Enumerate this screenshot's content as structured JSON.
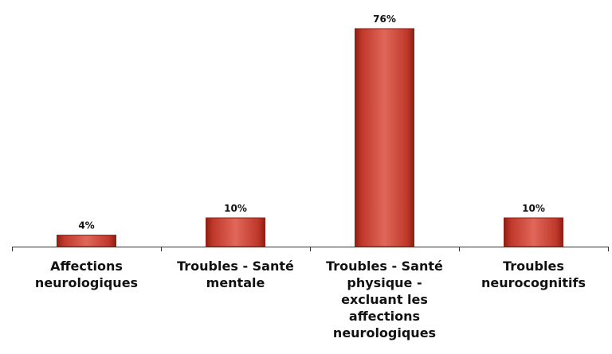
{
  "chart_data": {
    "type": "bar",
    "categories": [
      "Affections\nneurologiques",
      "Troubles - Santé\nmentale",
      "Troubles - Santé\nphysique -\nexcluant les\naffections\nneurologiques",
      "Troubles\nneurocognitifs"
    ],
    "values": [
      4,
      10,
      76,
      10
    ],
    "data_labels": [
      "4%",
      "10%",
      "76%",
      "10%"
    ],
    "title": "",
    "xlabel": "",
    "ylabel": "",
    "ylim": [
      0,
      76
    ],
    "grid": false,
    "legend": "none",
    "bar_color": "#c0392b",
    "bar_dark": "#8e1f14",
    "bar_light": "#e0675a"
  }
}
